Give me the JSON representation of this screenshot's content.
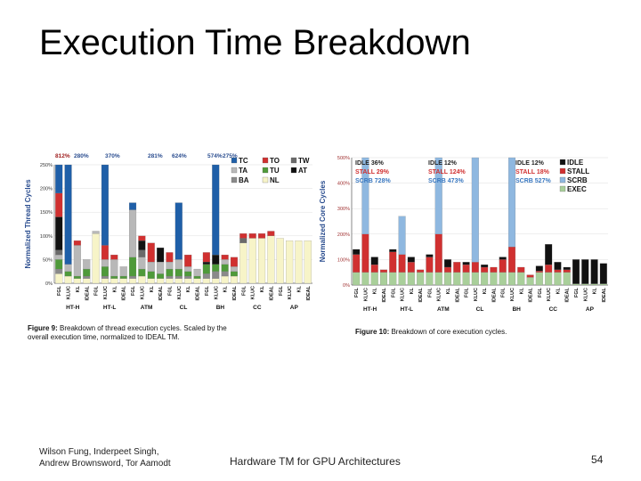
{
  "slide": {
    "title": "Execution Time Breakdown",
    "authors_line1": "Wilson Fung, Inderpeet Singh,",
    "authors_line2": "Andrew Brownsword, Tor Aamodt",
    "talk_title": "Hardware TM for GPU Architectures",
    "page_number": "54"
  },
  "colors": {
    "TC": "#1f5fa8",
    "TO": "#d03030",
    "TW": "#6a6a6a",
    "TA": "#b8b8b8",
    "TU": "#4f9a3a",
    "AT": "#111111",
    "BA": "#8a8a8a",
    "NL": "#f7f4c8",
    "IDLE": "#111111",
    "STALL": "#d03030",
    "SCRB": "#8fb8e0",
    "EXEC": "#a9cf9a"
  },
  "chart_data": [
    {
      "type": "bar",
      "stacked": true,
      "caption_label": "Figure 9:",
      "caption_rest": "Breakdown of thread execution cycles. Scaled by the",
      "caption_line2": "overall execution time, normalized to IDEAL TM.",
      "ylabel": "Normalized Thread Cycles",
      "ylim": [
        0,
        250
      ],
      "yticks": [
        "0%",
        "50%",
        "100%",
        "150%",
        "200%",
        "250%"
      ],
      "groups": [
        "HT-H",
        "HT-L",
        "ATM",
        "CL",
        "BH",
        "CC",
        "AP"
      ],
      "bar_labels": [
        "FGL",
        "KLUC",
        "KL",
        "IDEAL"
      ],
      "legend": [
        "TC",
        "TO",
        "TW",
        "TA",
        "TU",
        "AT",
        "BA",
        "NL"
      ],
      "overflow_labels": [
        "812%",
        "280%",
        "370%",
        "281%",
        "624%",
        "574%",
        "275%"
      ],
      "bars": [
        {
          "NL": 20,
          "BA": 10,
          "TU": 20,
          "TA": 10,
          "TW": 10,
          "AT": 70,
          "TC": 60,
          "TO": 50
        },
        {
          "NL": 15,
          "TU": 10,
          "TA": 15,
          "TC": 210
        },
        {
          "NL": 10,
          "TU": 5,
          "TA": 65,
          "TO": 10
        },
        {
          "NL": 10,
          "BA": 5,
          "TU": 15,
          "TA": 20
        },
        {
          "NL": 105,
          "TU": 0,
          "TA": 5,
          "TO": 0
        },
        {
          "NL": 10,
          "BA": 5,
          "TU": 20,
          "TA": 15,
          "TO": 30,
          "TC": 170
        },
        {
          "NL": 10,
          "TU": 5,
          "TA": 35,
          "TO": 10
        },
        {
          "NL": 10,
          "TU": 5,
          "TA": 20,
          "TO": 0
        },
        {
          "NL": 10,
          "BA": 5,
          "TU": 40,
          "TA": 100,
          "TC": 15
        },
        {
          "NL": 15,
          "TU": 15,
          "TA": 25,
          "TW": 15,
          "AT": 20,
          "TO": 10
        },
        {
          "NL": 10,
          "TU": 15,
          "TA": 20,
          "TO": 40
        },
        {
          "NL": 10,
          "TU": 10,
          "TA": 25,
          "AT": 30
        },
        {
          "NL": 10,
          "BA": 5,
          "TU": 15,
          "TA": 15,
          "TO": 20
        },
        {
          "NL": 10,
          "BA": 5,
          "TU": 15,
          "TA": 20,
          "TC": 120
        },
        {
          "NL": 10,
          "BA": 5,
          "TU": 10,
          "TA": 10,
          "TO": 25
        },
        {
          "NL": 10,
          "TU": 5,
          "TA": 15,
          "TO": 0
        },
        {
          "NL": 10,
          "BA": 10,
          "TU": 20,
          "AT": 5,
          "TO": 20
        },
        {
          "NL": 10,
          "BA": 15,
          "TU": 15,
          "AT": 20,
          "TC": 190
        },
        {
          "NL": 15,
          "BA": 10,
          "TU": 15,
          "TA": 10,
          "TO": 10
        },
        {
          "NL": 15,
          "TU": 10,
          "TA": 10,
          "TO": 20
        },
        {
          "NL": 85,
          "TO": 10,
          "TW": 10
        },
        {
          "NL": 95,
          "TO": 10
        },
        {
          "NL": 95,
          "TO": 10
        },
        {
          "NL": 100,
          "TO": 10
        },
        {
          "NL": 95
        },
        {
          "NL": 90
        },
        {
          "NL": 90
        },
        {
          "NL": 90
        }
      ]
    },
    {
      "type": "bar",
      "stacked": true,
      "caption_label": "Figure 10:",
      "caption_rest": "Breakdown of core execution cycles.",
      "ylabel": "Normalized Core Cycles",
      "ylim": [
        0,
        500
      ],
      "yticks": [
        "0%",
        "100%",
        "200%",
        "300%",
        "400%",
        "500%"
      ],
      "groups": [
        "HT-H",
        "HT-L",
        "ATM",
        "CL",
        "BH",
        "CC",
        "AP"
      ],
      "bar_labels": [
        "FGL",
        "KLUC",
        "KL",
        "IDEAL"
      ],
      "legend": [
        "IDLE",
        "STALL",
        "SCRB",
        "EXEC"
      ],
      "annotations": [
        {
          "IDLE": "IDLE 36%",
          "STALL": "STALL 29%",
          "SCRB": "SCRB 728%"
        },
        {
          "IDLE": "IDLE 12%",
          "STALL": "STALL 124%",
          "SCRB": "SCRB 473%"
        },
        {
          "IDLE": "IDLE 12%",
          "STALL": "STALL 18%",
          "SCRB": "SCRB 527%"
        }
      ],
      "bars": [
        {
          "EXEC": 50,
          "STALL": 70,
          "IDLE": 20
        },
        {
          "EXEC": 50,
          "STALL": 150,
          "SCRB": 300
        },
        {
          "EXEC": 50,
          "STALL": 30,
          "IDLE": 30
        },
        {
          "EXEC": 50,
          "STALL": 10
        },
        {
          "EXEC": 50,
          "STALL": 80,
          "IDLE": 10
        },
        {
          "EXEC": 50,
          "STALL": 70,
          "SCRB": 150
        },
        {
          "EXEC": 50,
          "STALL": 40,
          "IDLE": 20
        },
        {
          "EXEC": 50,
          "STALL": 10
        },
        {
          "EXEC": 50,
          "STALL": 60,
          "IDLE": 10
        },
        {
          "EXEC": 50,
          "STALL": 150,
          "SCRB": 300
        },
        {
          "EXEC": 50,
          "STALL": 20,
          "IDLE": 30
        },
        {
          "EXEC": 50,
          "STALL": 40
        },
        {
          "EXEC": 50,
          "STALL": 30,
          "IDLE": 10
        },
        {
          "EXEC": 50,
          "STALL": 40,
          "SCRB": 410
        },
        {
          "EXEC": 50,
          "STALL": 20,
          "IDLE": 10
        },
        {
          "EXEC": 50,
          "STALL": 20
        },
        {
          "EXEC": 50,
          "STALL": 50,
          "IDLE": 10
        },
        {
          "EXEC": 50,
          "STALL": 100,
          "SCRB": 350
        },
        {
          "EXEC": 50,
          "STALL": 20
        },
        {
          "EXEC": 30,
          "STALL": 10
        },
        {
          "EXEC": 50,
          "STALL": 5,
          "IDLE": 20
        },
        {
          "EXEC": 50,
          "STALL": 30,
          "IDLE": 80
        },
        {
          "EXEC": 50,
          "STALL": 10,
          "IDLE": 30
        },
        {
          "EXEC": 50,
          "STALL": 10,
          "IDLE": 10
        },
        {
          "EXEC": 5,
          "IDLE": 95
        },
        {
          "EXEC": 5,
          "IDLE": 95
        },
        {
          "EXEC": 5,
          "IDLE": 95
        },
        {
          "EXEC": 5,
          "IDLE": 80
        }
      ]
    }
  ]
}
